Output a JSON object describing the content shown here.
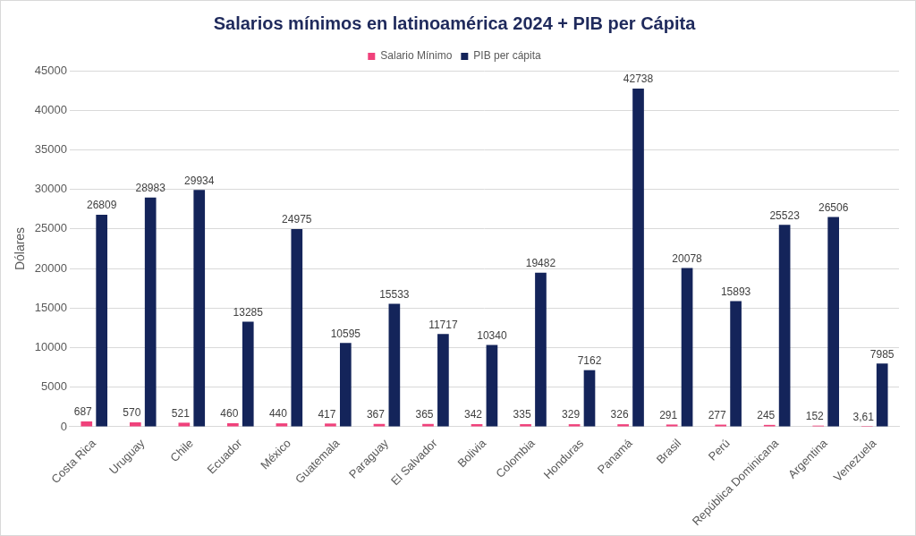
{
  "chart_data": {
    "type": "bar",
    "title": "Salarios mínimos en latinoamérica 2024 + PIB per Cápita",
    "y_label": "Dólares",
    "categories": [
      "Costa Rica",
      "Uruguay",
      "Chile",
      "Ecuador",
      "México",
      "Guatemala",
      "Paraguay",
      "El Salvador",
      "Bolivia",
      "Colombia",
      "Honduras",
      "Panamá",
      "Brasil",
      "Perú",
      "República Dominicana",
      "Argentina",
      "Venezuela"
    ],
    "series": [
      {
        "name": "Salario Mínimo",
        "color": "#f0417b",
        "values": [
          687,
          570,
          521,
          460,
          440,
          417,
          367,
          365,
          342,
          335,
          329,
          326,
          291,
          277,
          245,
          152,
          3.61
        ],
        "value_labels": [
          "687",
          "570",
          "521",
          "460",
          "440",
          "417",
          "367",
          "365",
          "342",
          "335",
          "329",
          "326",
          "291",
          "277",
          "245",
          "152",
          "3,61"
        ]
      },
      {
        "name": "PIB per cápita",
        "color": "#14245a",
        "values": [
          26809,
          28983,
          29934,
          13285,
          24975,
          10595,
          15533,
          11717,
          10340,
          19482,
          7162,
          42738,
          20078,
          15893,
          25523,
          26506,
          7985
        ]
      }
    ],
    "ylim": [
      0,
      45000
    ],
    "yticks": [
      0,
      5000,
      10000,
      15000,
      20000,
      25000,
      30000,
      35000,
      40000,
      45000
    ],
    "grid": true,
    "legend": "top",
    "data_labels": true
  }
}
